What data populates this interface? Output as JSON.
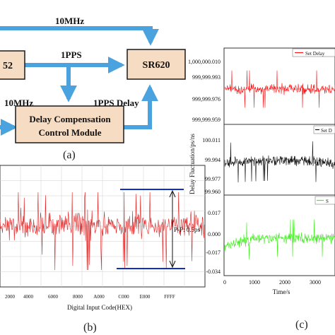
{
  "panel_a": {
    "caption": "(a)",
    "blocks": {
      "source_partial": "52",
      "sr620": "SR620",
      "delay_line1": "Delay Compensation",
      "delay_line2": "Control Module"
    },
    "edge_labels": {
      "top_10mhz": "10MHz",
      "pps": "1PPS",
      "left_10mhz": "10MHz",
      "pps_delay": "1PPS Delay"
    },
    "colors": {
      "arrow": "#4aa3df",
      "block_fill": "#f6dcc3",
      "block_border": "#1a1a1a"
    }
  },
  "panel_b": {
    "caption": "(b)",
    "xlabel": "Digital Input Code(HEX)",
    "xticks": [
      "2000",
      "4000",
      "6000",
      "8000",
      "A000",
      "C000",
      "E000",
      "FFFF"
    ],
    "annotation": "P-P: 0.5ps",
    "colors": {
      "series": "#e02020",
      "marker_line": "#1030c0"
    }
  },
  "panel_c": {
    "caption": "(c)",
    "ylabel": "Delay Fluctuation/ps/ns",
    "xlabel": "Time/s",
    "xticks": [
      "0",
      "1000",
      "2000",
      "3000"
    ],
    "subplots": [
      {
        "legend": "Set Delay",
        "yticks": [
          "1,000,000.010",
          "999,999.993",
          "999,999.976",
          "999,999.959"
        ],
        "color": "#ff1a1a"
      },
      {
        "legend": "Set D",
        "yticks": [
          "100.011",
          "99.994",
          "99.977",
          "99.960"
        ],
        "color": "#111111"
      },
      {
        "legend": "S",
        "yticks": [
          "0.017",
          "0.000",
          "-0.017",
          "-0.034"
        ],
        "color": "#44ee22"
      }
    ]
  },
  "chart_data": [
    {
      "type": "line",
      "panel": "b",
      "xlabel": "Digital Input Code(HEX)",
      "x_categories": [
        "2000",
        "4000",
        "6000",
        "8000",
        "A000",
        "C000",
        "E000",
        "FFFF"
      ],
      "annotation": "P-P: 0.5ps",
      "peak_to_peak_ps": 0.5,
      "grid": true
    },
    {
      "type": "line",
      "panel": "c",
      "ylabel": "Delay Fluctuation/ps/ns",
      "xlabel": "Time/s",
      "xlim": [
        0,
        3600
      ],
      "xticks": [
        0,
        1000,
        2000,
        3000
      ],
      "subplots": [
        {
          "legend": "Set Delay",
          "ylim": [
            999999.959,
            1000000.01
          ],
          "center": 999999.985
        },
        {
          "legend": "Set D",
          "ylim": [
            99.96,
            100.011
          ],
          "center": 99.99
        },
        {
          "legend": "S",
          "ylim": [
            -0.034,
            0.017
          ],
          "center": 0.0
        }
      ]
    }
  ]
}
